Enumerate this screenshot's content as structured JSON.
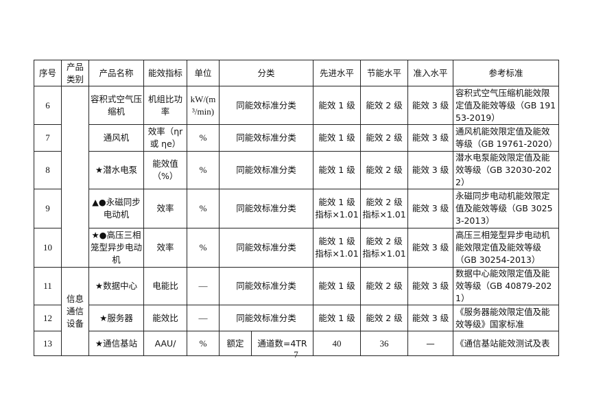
{
  "table": {
    "headers": [
      "序号",
      "产品类别",
      "产品名称",
      "能效指标",
      "单位",
      "分类",
      "先进水平",
      "节能水平",
      "准入水平",
      "参考标准"
    ],
    "rows": [
      {
        "no": "6",
        "category": "",
        "name": "容积式空气压缩机",
        "indicator": "机组比功率",
        "unit": "kW/(m³/min)",
        "class": "同能效标准分类",
        "advanced": "能效 1 级",
        "saving": "能效 2 级",
        "entry": "能效 3 级",
        "ref": "容积式空气压缩机能效限定值及能效等级（GB 19153-2019）"
      },
      {
        "no": "7",
        "name": "通风机",
        "indicator": "效率（ηr 或 ηe）",
        "unit": "%",
        "class": "同能效标准分类",
        "advanced": "能效 1 级",
        "saving": "能效 2 级",
        "entry": "能效 3 级",
        "ref": "通风机能效限定值及能效等级（GB 19761-2020）"
      },
      {
        "no": "8",
        "name": "★潜水电泵",
        "indicator": "能效值（%）",
        "unit": "%",
        "class": "同能效标准分类",
        "advanced": "能效 1 级",
        "saving": "能效 2 级",
        "entry": "能效 3 级",
        "ref": "潜水电泵能效限定值及能效等级（GB 32030-2022）"
      },
      {
        "no": "9",
        "name": "▲●永磁同步电动机",
        "indicator": "效率",
        "unit": "%",
        "class": "同能效标准分类",
        "advanced": "能效 1 级 指标×1.01",
        "saving": "能效 2 级 指标×1.01",
        "entry": "能效 3 级",
        "ref": "永磁同步电动机能效限定值及能效等级（GB 30253-2013）"
      },
      {
        "no": "10",
        "name": "★●高压三相笼型异步电动机",
        "indicator": "效率",
        "unit": "%",
        "class": "同能效标准分类",
        "advanced": "能效 1 级 指标×1.01",
        "saving": "能效 2 级 指标×1.01",
        "entry": "能效 3 级",
        "ref": "高压三相笼型异步电动机能效限定值及能效等级（GB 30254-2013）"
      },
      {
        "no": "11",
        "category": "信息通信设备",
        "name": "★数据中心",
        "indicator": "电能比",
        "unit": "—",
        "class": "同能效标准分类",
        "advanced": "能效 1 级",
        "saving": "能效 2 级",
        "entry": "能效 3 级",
        "ref": "数据中心能效限定值及能效等级（GB 40879-2021）"
      },
      {
        "no": "12",
        "name": "★服务器",
        "indicator": "能效比",
        "unit": "—",
        "class": "同能效标准分类",
        "advanced": "能效 1 级",
        "saving": "能效 2 级",
        "entry": "能效 3 级",
        "ref": "《服务器能效限定值及能效等级》国家标准"
      },
      {
        "no": "13",
        "name": "★通信基站",
        "indicator": "AAU/",
        "unit": "%",
        "class_a": "额定",
        "class_b": "通道数=4TR",
        "advanced": "40",
        "saving": "36",
        "entry": "—",
        "ref": "《通信基站能效测试及表"
      }
    ]
  },
  "page_number": "7"
}
